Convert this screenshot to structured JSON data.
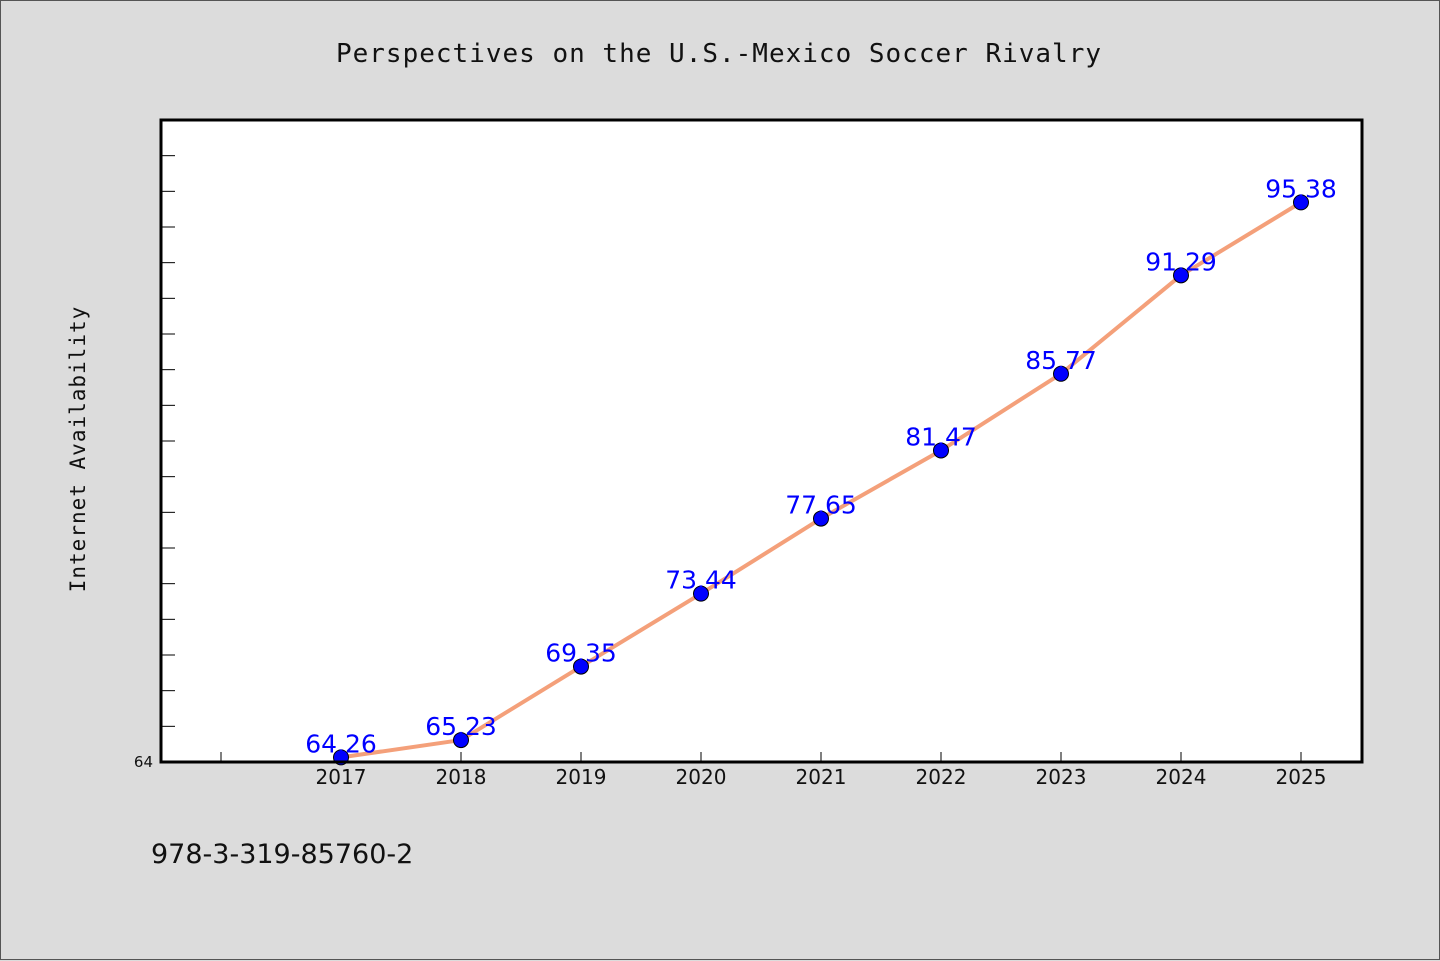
{
  "colors": {
    "background": "#dcdcdc",
    "plot_background": "#ffffff",
    "line": "#f4a07a",
    "marker": "#0000ff",
    "data_label": "#0000ff"
  },
  "footer": {
    "text": "978-3-319-85760-2"
  },
  "chart_data": {
    "type": "line",
    "title": "Perspectives on the U.S.-Mexico Soccer Rivalry",
    "xlabel": "",
    "ylabel": "Internet Availability",
    "categories": [
      "2017",
      "2018",
      "2019",
      "2020",
      "2021",
      "2022",
      "2023",
      "2024",
      "2025"
    ],
    "series": [
      {
        "values": [
          64.26,
          65.23,
          69.35,
          73.44,
          77.65,
          81.47,
          85.77,
          91.29,
          95.38
        ]
      }
    ],
    "data_labels": [
      "64.26",
      "65.23",
      "69.35",
      "73.44",
      "77.65",
      "81.47",
      "85.77",
      "91.29",
      "95.38"
    ],
    "yticks": [
      "64"
    ],
    "ylim": [
      64,
      100
    ],
    "grid": false,
    "legend": "none"
  }
}
